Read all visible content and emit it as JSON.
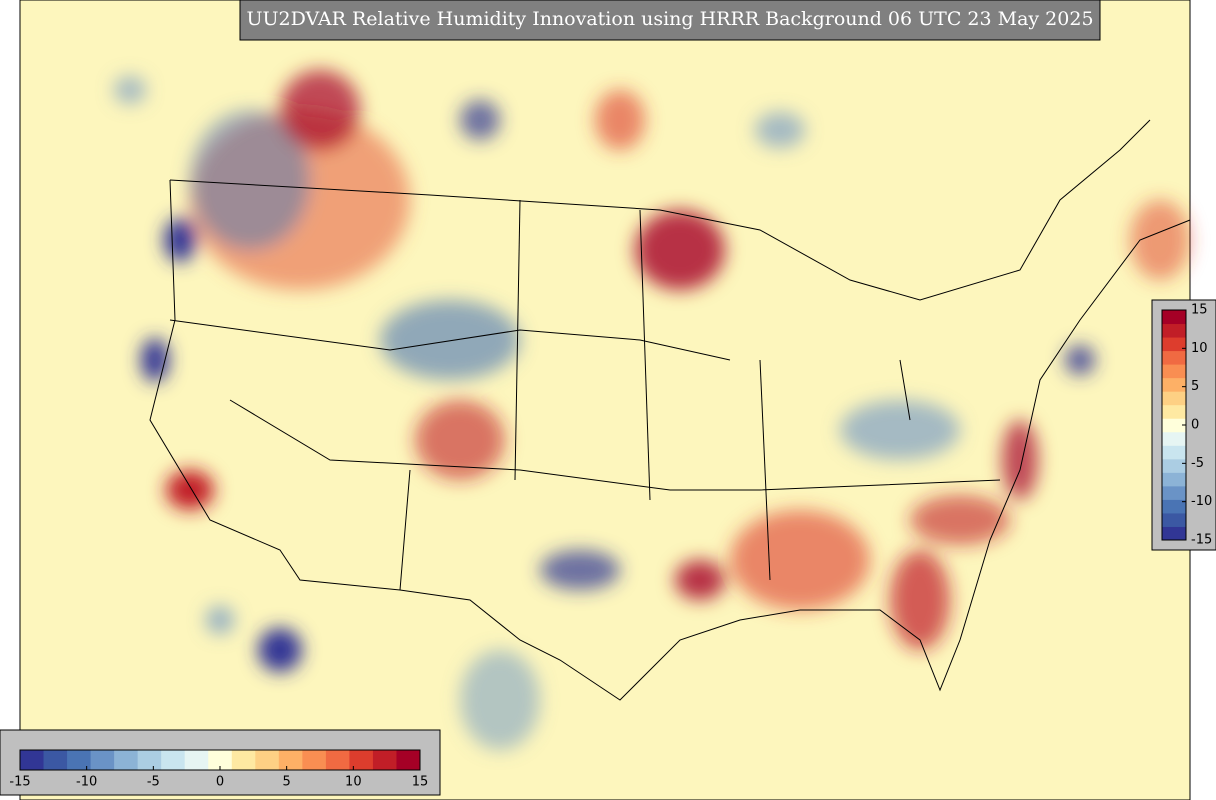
{
  "title": "UU2DVAR Relative Humidity Innovation using HRRR Background 06 UTC 23 May 2025",
  "colormap": [
    "#313695",
    "#3b58a3",
    "#4a74b4",
    "#6a93c6",
    "#8cb3d6",
    "#abcde3",
    "#c9e5ef",
    "#e6f5f3",
    "#ffffdb",
    "#fee9a2",
    "#fdd084",
    "#fdb066",
    "#f98e52",
    "#f06a42",
    "#dd3d2d",
    "#c11e27",
    "#a50026"
  ],
  "colorbar_right": {
    "lim": [
      -15,
      15
    ],
    "ticks": [
      15,
      10,
      5,
      0,
      -5,
      -10,
      -15
    ]
  },
  "colorbar_bottom": {
    "lim": [
      -15,
      15
    ],
    "ticks": [
      -15,
      -10,
      -5,
      0,
      5,
      10,
      15
    ]
  }
}
